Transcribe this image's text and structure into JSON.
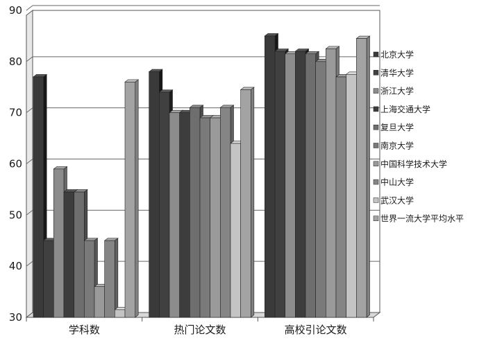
{
  "chart_data": {
    "type": "bar",
    "categories": [
      "学科数",
      "热门论文数",
      "高校引论文数"
    ],
    "ylim": [
      30,
      90
    ],
    "yticks": [
      30,
      40,
      50,
      60,
      70,
      80,
      90
    ],
    "grid": true,
    "legend_position": "right",
    "series": [
      {
        "name": "北京大学",
        "color": "#3a3a3a",
        "values": [
          77,
          78,
          85
        ]
      },
      {
        "name": "清华大学",
        "color": "#404040",
        "values": [
          45,
          74,
          82
        ]
      },
      {
        "name": "浙江大学",
        "color": "#8c8c8c",
        "values": [
          59,
          70,
          81.5
        ]
      },
      {
        "name": "上海交通大学",
        "color": "#3d3d3d",
        "values": [
          54.5,
          70,
          82
        ]
      },
      {
        "name": "复旦大学",
        "color": "#6e6e6e",
        "values": [
          54.5,
          71,
          81.5
        ]
      },
      {
        "name": "南京大学",
        "color": "#7a7a7a",
        "values": [
          45,
          69,
          80
        ]
      },
      {
        "name": "中国科学技术大学",
        "color": "#9a9a9a",
        "values": [
          36,
          69,
          82.5
        ]
      },
      {
        "name": "中山大学",
        "color": "#858585",
        "values": [
          45,
          71,
          77
        ]
      },
      {
        "name": "武汉大学",
        "color": "#c4c4c4",
        "values": [
          31.5,
          64,
          77.5
        ]
      },
      {
        "name": "世界一流大学平均水平",
        "color": "#a3a3a3",
        "values": [
          76,
          74.5,
          84.5
        ]
      }
    ]
  }
}
